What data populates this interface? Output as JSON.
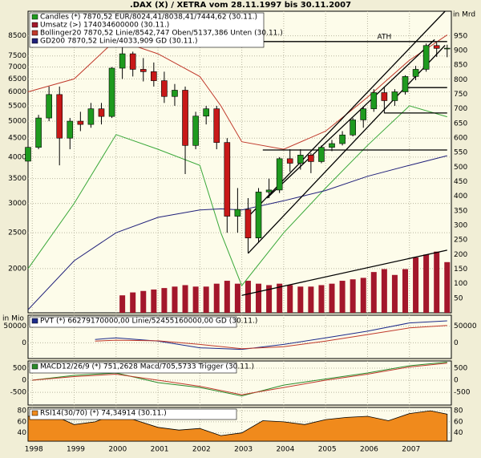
{
  "chart_data": [
    {
      "type": "candlestick",
      "title": ".DAX (X) / XETRA vom 28.11.1997 bis 30.11.2007",
      "name": "Candles (*) 7870,52 EUR/8024,41/8038,41/7444,62 (30.11.)",
      "up_color": "#1e9a1e",
      "down_color": "#c81818",
      "log_y": true,
      "xlim": [
        1997.9,
        2008.0
      ],
      "ylim": [
        1520,
        9900
      ],
      "yticks": [
        2000,
        2500,
        3000,
        3500,
        4000,
        4500,
        5000,
        5500,
        6000,
        6500,
        7000,
        7500,
        8500
      ],
      "y2lim": [
        0,
        1035
      ],
      "y2ticks": [
        50,
        100,
        150,
        200,
        250,
        300,
        350,
        400,
        450,
        500,
        550,
        600,
        650,
        700,
        750,
        800,
        850,
        900,
        950
      ],
      "y2_label": "in Mrd",
      "annotation": "ATH",
      "x": [
        1997.9,
        1998.15,
        1998.4,
        1998.65,
        1998.9,
        1999.15,
        1999.4,
        1999.65,
        1999.9,
        2000.15,
        2000.4,
        2000.65,
        2000.9,
        2001.15,
        2001.4,
        2001.65,
        2001.9,
        2002.15,
        2002.4,
        2002.65,
        2002.9,
        2003.15,
        2003.4,
        2003.65,
        2003.9,
        2004.15,
        2004.4,
        2004.65,
        2004.9,
        2005.15,
        2005.4,
        2005.65,
        2005.9,
        2006.15,
        2006.4,
        2006.65,
        2006.9,
        2007.15,
        2007.4,
        2007.65,
        2007.9
      ],
      "open": [
        3900,
        4250,
        5100,
        5900,
        4500,
        5000,
        4900,
        5400,
        5150,
        6950,
        7600,
        6900,
        6800,
        6430,
        5830,
        6060,
        4300,
        5160,
        5400,
        4380,
        2770,
        2890,
        2420,
        3220,
        3260,
        3960,
        3850,
        4050,
        3890,
        4250,
        4350,
        4590,
        5040,
        5400,
        5970,
        5680,
        6000,
        6600,
        6900,
        8000,
        7860
      ],
      "high": [
        4300,
        5200,
        6200,
        6200,
        5100,
        5300,
        5600,
        5600,
        7000,
        8000,
        7700,
        7400,
        7200,
        6800,
        6300,
        6200,
        5300,
        5500,
        5500,
        4500,
        3300,
        3100,
        3300,
        3500,
        4000,
        4200,
        4200,
        4100,
        4300,
        4450,
        4700,
        5100,
        5450,
        6100,
        6200,
        6100,
        6650,
        7050,
        8100,
        8150,
        8040
      ],
      "low": [
        3800,
        4200,
        5000,
        3800,
        4200,
        4700,
        4800,
        4900,
        5100,
        6500,
        6600,
        6400,
        6200,
        5600,
        5500,
        3600,
        4200,
        4900,
        4200,
        2500,
        2500,
        2200,
        2350,
        3100,
        3200,
        3650,
        3700,
        3620,
        3850,
        4150,
        4300,
        4550,
        4800,
        5300,
        5250,
        5500,
        5900,
        6450,
        6800,
        7450,
        7440
      ],
      "close": [
        4250,
        5100,
        5900,
        4500,
        5000,
        4900,
        5400,
        5150,
        6950,
        7600,
        6900,
        6800,
        6430,
        5830,
        6060,
        4300,
        5160,
        5400,
        4380,
        2770,
        2890,
        2420,
        3220,
        3260,
        3960,
        3850,
        4050,
        3890,
        4250,
        4350,
        4590,
        5040,
        5400,
        5970,
        5680,
        6000,
        6600,
        6900,
        8000,
        7860,
        7870
      ],
      "series": [
        {
          "name": "Umsatz (>) 174034600000 (30.11.)",
          "kind": "bar",
          "axis": "y2",
          "color": "#a3172b",
          "x": [
            2000.15,
            2000.4,
            2000.65,
            2000.9,
            2001.15,
            2001.4,
            2001.65,
            2001.9,
            2002.15,
            2002.4,
            2002.65,
            2002.9,
            2003.15,
            2003.4,
            2003.65,
            2003.9,
            2004.15,
            2004.4,
            2004.65,
            2004.9,
            2005.15,
            2005.4,
            2005.65,
            2005.9,
            2006.15,
            2006.4,
            2006.65,
            2006.9,
            2007.15,
            2007.4,
            2007.65,
            2007.9
          ],
          "values": [
            60,
            70,
            75,
            80,
            85,
            90,
            95,
            90,
            90,
            100,
            110,
            100,
            110,
            100,
            95,
            100,
            95,
            90,
            90,
            95,
            100,
            110,
            115,
            120,
            140,
            150,
            130,
            150,
            190,
            200,
            210,
            174
          ]
        },
        {
          "name": "Bollinger20 7870,52 Linie/8542,747 Oben/5137,386 Unten (30.11.)",
          "kind": "band",
          "color": "#c0392b",
          "lower_color": "#3aa83a",
          "x": [
            1997.9,
            1999,
            2000,
            2001,
            2002,
            2002.5,
            2003,
            2004,
            2005,
            2006,
            2007,
            2007.9
          ],
          "values": [
            6000,
            6500,
            8300,
            7600,
            6600,
            5500,
            4400,
            4200,
            4700,
            5800,
            7300,
            8542
          ],
          "lower": [
            2000,
            3000,
            4600,
            4200,
            3800,
            2500,
            1800,
            2500,
            3300,
            4300,
            5500,
            5137
          ]
        },
        {
          "name": "GD200 7870,52 Linie/4033,909 GD (30.11.)",
          "kind": "line",
          "color": "#20207a",
          "x": [
            1997.9,
            1999,
            2000,
            2001,
            2002,
            2002.5,
            2003,
            2004,
            2005,
            2006,
            2007,
            2007.9
          ],
          "values": [
            1550,
            2100,
            2500,
            2750,
            2880,
            2900,
            2880,
            3050,
            3250,
            3550,
            3800,
            4034
          ]
        }
      ],
      "trendlines": [
        {
          "x": [
            2003.15,
            2007.85
          ],
          "values": [
            2760,
            9900
          ]
        },
        {
          "x": [
            2003.15,
            2007.85
          ],
          "values": [
            2200,
            8010
          ]
        },
        {
          "x": [
            2003.6,
            2007.6
          ],
          "values": [
            3100,
            8300
          ]
        },
        {
          "x": [
            1999.9,
            2007.9
          ],
          "values": [
            8200,
            8200
          ]
        },
        {
          "x": [
            2003.5,
            2007.9
          ],
          "values": [
            4180,
            4180
          ]
        },
        {
          "x": [
            2006.9,
            2007.9
          ],
          "values": [
            6160,
            6160
          ]
        },
        {
          "x": [
            2006.4,
            2007.9
          ],
          "values": [
            5260,
            5260
          ]
        },
        {
          "x": [
            2003.0,
            2007.9
          ],
          "values": [
            60,
            215
          ],
          "axis": "y2"
        }
      ]
    },
    {
      "type": "line",
      "legend": "PVT (*) 66279170000,00 Linie/52455160000,00 GD (30.11.)",
      "y_label": "in Mio",
      "xlim": [
        1997.9,
        2008.0
      ],
      "ylim": [
        -47600,
        83300
      ],
      "yticks": [
        50000,
        0
      ],
      "right_labels": true,
      "x": [
        1999.5,
        2000,
        2001,
        2002,
        2003,
        2004,
        2005,
        2006,
        2007,
        2007.9
      ],
      "series": [
        {
          "color": "#1c2a8a",
          "values": [
            10000,
            15000,
            5000,
            -15000,
            -20000,
            -5000,
            15000,
            35000,
            60000,
            66279
          ]
        },
        {
          "color": "#c0392b",
          "values": [
            5000,
            8000,
            6000,
            -5000,
            -18000,
            -12000,
            5000,
            25000,
            45000,
            52455
          ]
        }
      ]
    },
    {
      "type": "line",
      "legend": "MACD12/26/9 (*) 751,2628 Macd/705,5733 Trigger (30.11.)",
      "xlim": [
        1997.9,
        2008.0
      ],
      "ylim": [
        -1030,
        800
      ],
      "yticks": [
        500,
        0,
        -500
      ],
      "right_labels": true,
      "x": [
        1998,
        1999,
        2000,
        2001,
        2002,
        2003,
        2004,
        2005,
        2006,
        2007,
        2007.9
      ],
      "series": [
        {
          "color": "#2a8a2a",
          "values": [
            0,
            200,
            300,
            -100,
            -300,
            -650,
            -200,
            50,
            300,
            600,
            751
          ]
        },
        {
          "color": "#c0392b",
          "values": [
            0,
            150,
            250,
            0,
            -250,
            -600,
            -300,
            0,
            250,
            550,
            706
          ]
        }
      ]
    },
    {
      "type": "area",
      "legend": "RSI14(30/70) (*) 74,34914 (30.11.)",
      "color": "#f08a1c",
      "xlim": [
        1997.9,
        2008.0
      ],
      "ylim": [
        25,
        86
      ],
      "yticks": [
        80,
        60,
        40
      ],
      "right_labels": true,
      "xticks": [
        1998,
        1999,
        2000,
        2001,
        2002,
        2003,
        2004,
        2005,
        2006,
        2007
      ],
      "x": [
        1997.9,
        1998.5,
        1999,
        1999.5,
        2000,
        2000.5,
        2001,
        2001.5,
        2002,
        2002.5,
        2003,
        2003.5,
        2004,
        2004.5,
        2005,
        2005.5,
        2006,
        2006.5,
        2007,
        2007.5,
        2007.9
      ],
      "values": [
        70,
        72,
        55,
        60,
        75,
        62,
        50,
        45,
        48,
        35,
        40,
        62,
        60,
        55,
        64,
        68,
        70,
        62,
        75,
        80,
        74
      ]
    }
  ]
}
